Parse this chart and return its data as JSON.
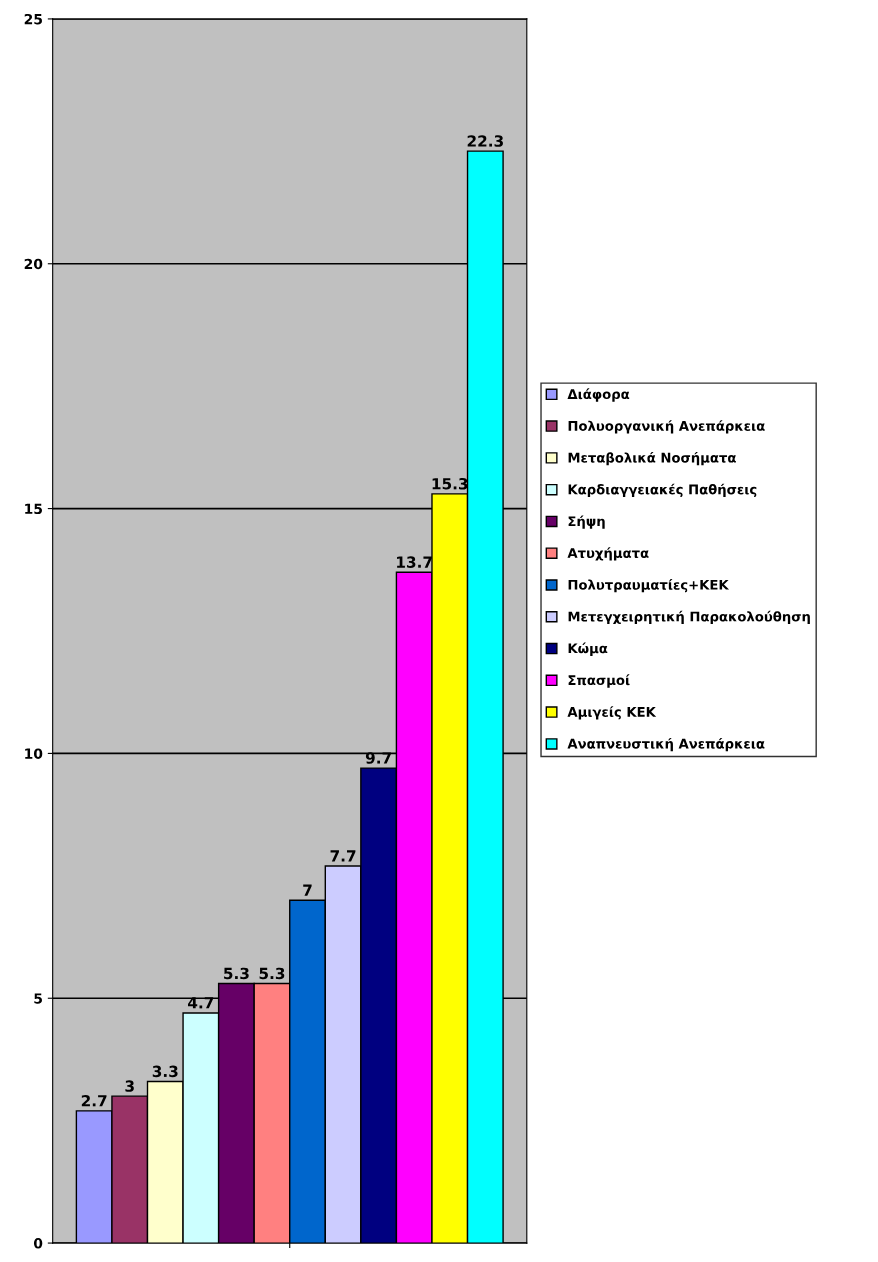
{
  "chart_data": {
    "type": "bar",
    "categories": [
      null
    ],
    "series": [
      {
        "name": "Διάφορα",
        "color": "#9999ff",
        "values": [
          2.7
        ]
      },
      {
        "name": "Πολυοργανική Ανεπάρκεια",
        "color": "#993366",
        "values": [
          3
        ]
      },
      {
        "name": "Μεταβολικά Νοσήματα",
        "color": "#ffffcc",
        "values": [
          3.3
        ]
      },
      {
        "name": "Καρδιαγγειακές Παθήσεις",
        "color": "#ccffff",
        "values": [
          4.7
        ]
      },
      {
        "name": "Σήψη",
        "color": "#660066",
        "values": [
          5.3
        ]
      },
      {
        "name": "Ατυχήματα",
        "color": "#ff8080",
        "values": [
          5.3
        ]
      },
      {
        "name": "Πολυτραυματίες+ΚΕΚ",
        "color": "#0066cc",
        "values": [
          7
        ]
      },
      {
        "name": "Μετεγχειρητική Παρακολούθηση",
        "color": "#ccccff",
        "values": [
          7.7
        ]
      },
      {
        "name": "Κώμα",
        "color": "#000080",
        "values": [
          9.7
        ]
      },
      {
        "name": "Σπασμοί",
        "color": "#ff00ff",
        "values": [
          13.7
        ]
      },
      {
        "name": "Αμιγείς ΚΕΚ",
        "color": "#ffff00",
        "values": [
          15.3
        ]
      },
      {
        "name": "Αναπνευστική Ανεπάρκεια",
        "color": "#00ffff",
        "values": [
          22.3
        ]
      }
    ],
    "ylim": [
      0,
      25
    ],
    "yticks": [
      0,
      5,
      10,
      15,
      20,
      25
    ],
    "grid": "y",
    "legend": "right",
    "data_labels": true
  }
}
